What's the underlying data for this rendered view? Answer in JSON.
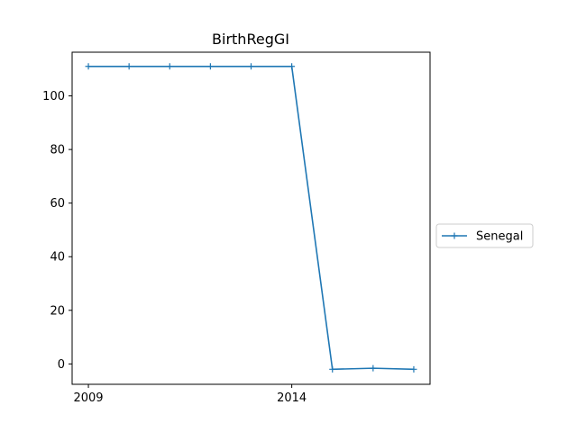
{
  "chart_data": {
    "type": "line",
    "title": "BirthRegGI",
    "xlabel": "",
    "ylabel": "",
    "x": [
      2009,
      2010,
      2011,
      2012,
      2013,
      2014,
      2015,
      2016,
      2017
    ],
    "x_ticks": [
      2009,
      2014
    ],
    "y_ticks": [
      0,
      20,
      40,
      60,
      80,
      100
    ],
    "xlim": [
      2008.6,
      2017.4
    ],
    "ylim": [
      -7.6,
      116.3
    ],
    "grid": false,
    "legend_position": "right",
    "series": [
      {
        "name": "Senegal",
        "color": "#1f77b4",
        "marker": "plus",
        "values": [
          111,
          111,
          111,
          111,
          111,
          111,
          -2,
          -1.6,
          -2
        ]
      }
    ]
  }
}
